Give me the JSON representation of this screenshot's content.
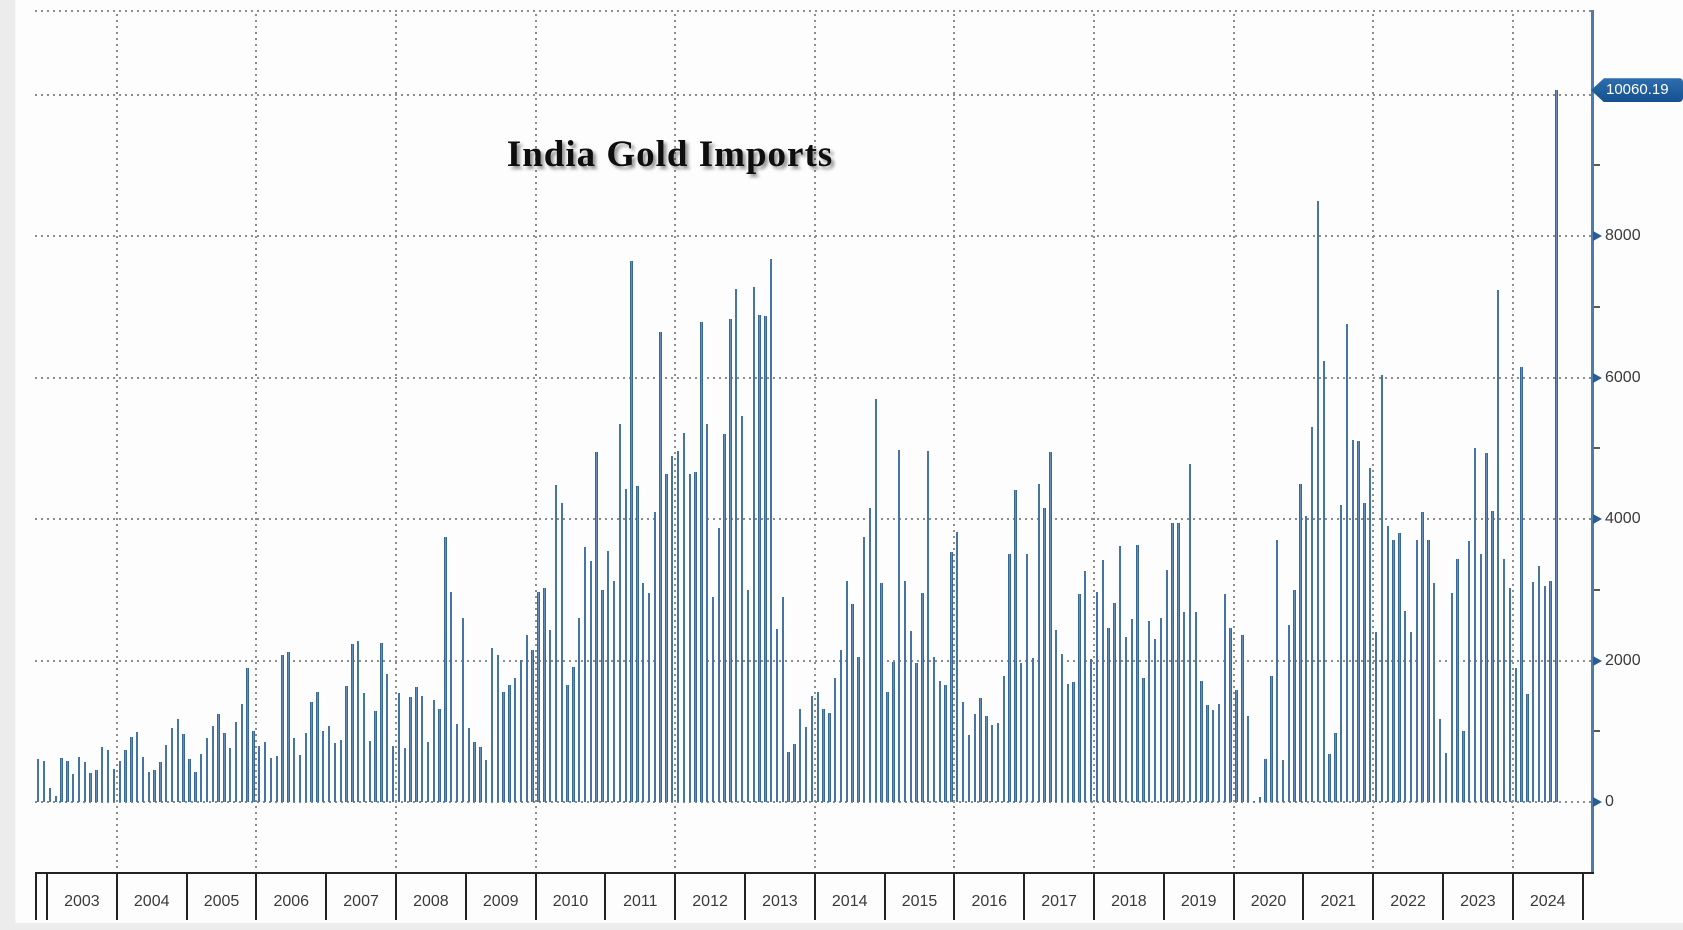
{
  "chart_data": {
    "type": "bar",
    "title": "India Gold Imports",
    "y_axis": {
      "ticks_labeled": [
        0,
        2000,
        4000,
        6000,
        8000
      ],
      "ticks_minor": [
        1000,
        3000,
        5000,
        7000,
        9000
      ],
      "gridlines": [
        0,
        2000,
        4000,
        6000,
        8000,
        10000
      ],
      "range": [
        0,
        11200
      ],
      "side": "right"
    },
    "x_axis": {
      "year_labels": [
        "2003",
        "2004",
        "2005",
        "2006",
        "2007",
        "2008",
        "2009",
        "2010",
        "2011",
        "2012",
        "2013",
        "2014",
        "2015",
        "2016",
        "2017",
        "2018",
        "2019",
        "2020",
        "2021",
        "2022",
        "2023",
        "2024"
      ],
      "gridline_years": [
        2004,
        2006,
        2008,
        2010,
        2012,
        2014,
        2016,
        2018,
        2020,
        2022,
        2024
      ]
    },
    "last_point": {
      "label": "10060.19",
      "value": 10060.19
    },
    "grid": "dotted",
    "legend": "none",
    "series": {
      "name": "India Gold Imports",
      "start_month": "2002-11",
      "values_by_year": {
        "2002": [
          610,
          575
        ],
        "2003": [
          200,
          90,
          620,
          585,
          390,
          640,
          565,
          415,
          455,
          775,
          730,
          460
        ],
        "2004": [
          575,
          730,
          915,
          990,
          640,
          420,
          450,
          560,
          800,
          1050,
          1175,
          960
        ],
        "2005": [
          610,
          430,
          680,
          900,
          1080,
          1250,
          980,
          760,
          1130,
          1390,
          1900,
          1010
        ],
        "2006": [
          790,
          855,
          620,
          650,
          2080,
          2120,
          900,
          660,
          980,
          1420,
          1560,
          1010
        ],
        "2007": [
          1070,
          830,
          880,
          1640,
          2230,
          2280,
          1540,
          860,
          1280,
          2250,
          1810,
          790
        ],
        "2008": [
          1540,
          760,
          1480,
          1630,
          1500,
          850,
          1440,
          1320,
          3750,
          2970,
          1100,
          2600
        ],
        "2009": [
          1040,
          850,
          780,
          590,
          2170,
          2080,
          1560,
          1650,
          1750,
          2010,
          2360,
          2150
        ],
        "2010": [
          2970,
          3020,
          2430,
          4480,
          4220,
          1650,
          1910,
          2600,
          3610,
          3400,
          4950,
          3000
        ],
        "2011": [
          3550,
          3120,
          5340,
          4420,
          7640,
          4470,
          3100,
          2950,
          4100,
          6650,
          4630,
          4890
        ],
        "2012": [
          4960,
          5220,
          4630,
          4660,
          6780,
          5340,
          2900,
          3870,
          5200,
          6830,
          7250,
          5450
        ],
        "2013": [
          3000,
          7280,
          6880,
          6870,
          7670,
          2450,
          2900,
          700,
          820,
          1310,
          1060,
          1500
        ],
        "2014": [
          1550,
          1310,
          1260,
          1750,
          2150,
          3120,
          2800,
          2050,
          3750,
          4150,
          5700,
          3100
        ],
        "2015": [
          1550,
          1980,
          4980,
          3130,
          2420,
          1960,
          2960,
          4960,
          2050,
          1710,
          1650,
          3540
        ],
        "2016": [
          3810,
          1420,
          950,
          1250,
          1470,
          1210,
          1090,
          1110,
          1780,
          3500,
          4410,
          1970
        ],
        "2017": [
          3510,
          2030,
          4490,
          4150,
          4950,
          2430,
          2090,
          1670,
          1690,
          2940,
          3260,
          2020
        ],
        "2018": [
          2970,
          3420,
          2460,
          2810,
          3620,
          2330,
          2580,
          3630,
          1750,
          2560,
          2300,
          2600
        ],
        "2019": [
          3280,
          3940,
          3950,
          2690,
          4780,
          2690,
          1710,
          1370,
          1300,
          1390,
          2940,
          2460
        ],
        "2020": [
          1580,
          2360,
          1220,
          3,
          76,
          610,
          1780,
          3700,
          600,
          2500,
          3000,
          4500
        ],
        "2021": [
          4040,
          5300,
          8490,
          6230,
          680,
          970,
          4200,
          6750,
          5110,
          5100,
          4220,
          4720
        ],
        "2022": [
          2400,
          6030,
          3900,
          3700,
          3800,
          2700,
          2400,
          3700,
          4100,
          3700,
          3100,
          1180
        ],
        "2023": [
          690,
          2950,
          3430,
          1010,
          3690,
          5000,
          3500,
          4930,
          4110,
          7230,
          3440,
          3030
        ],
        "2024": [
          1900,
          6150,
          1530,
          3110,
          3330,
          3060,
          3130,
          10060.19
        ]
      }
    }
  },
  "colors": {
    "bar_edge": "#1e4f7e",
    "bar_fill": "#6e9bc7",
    "axis_line": "#4b7cae",
    "tick_arrow": "#2a5d95",
    "tick_minor": "#5a5a5a",
    "badge_bg_top": "#2e6eae",
    "badge_bg_bottom": "#15508f",
    "badge_text": "#ffffff",
    "grid_dot": "#8d8d8d",
    "axis_black": "#222222",
    "label_text": "#3a3a3a",
    "title_text": "#0e0e0e"
  }
}
